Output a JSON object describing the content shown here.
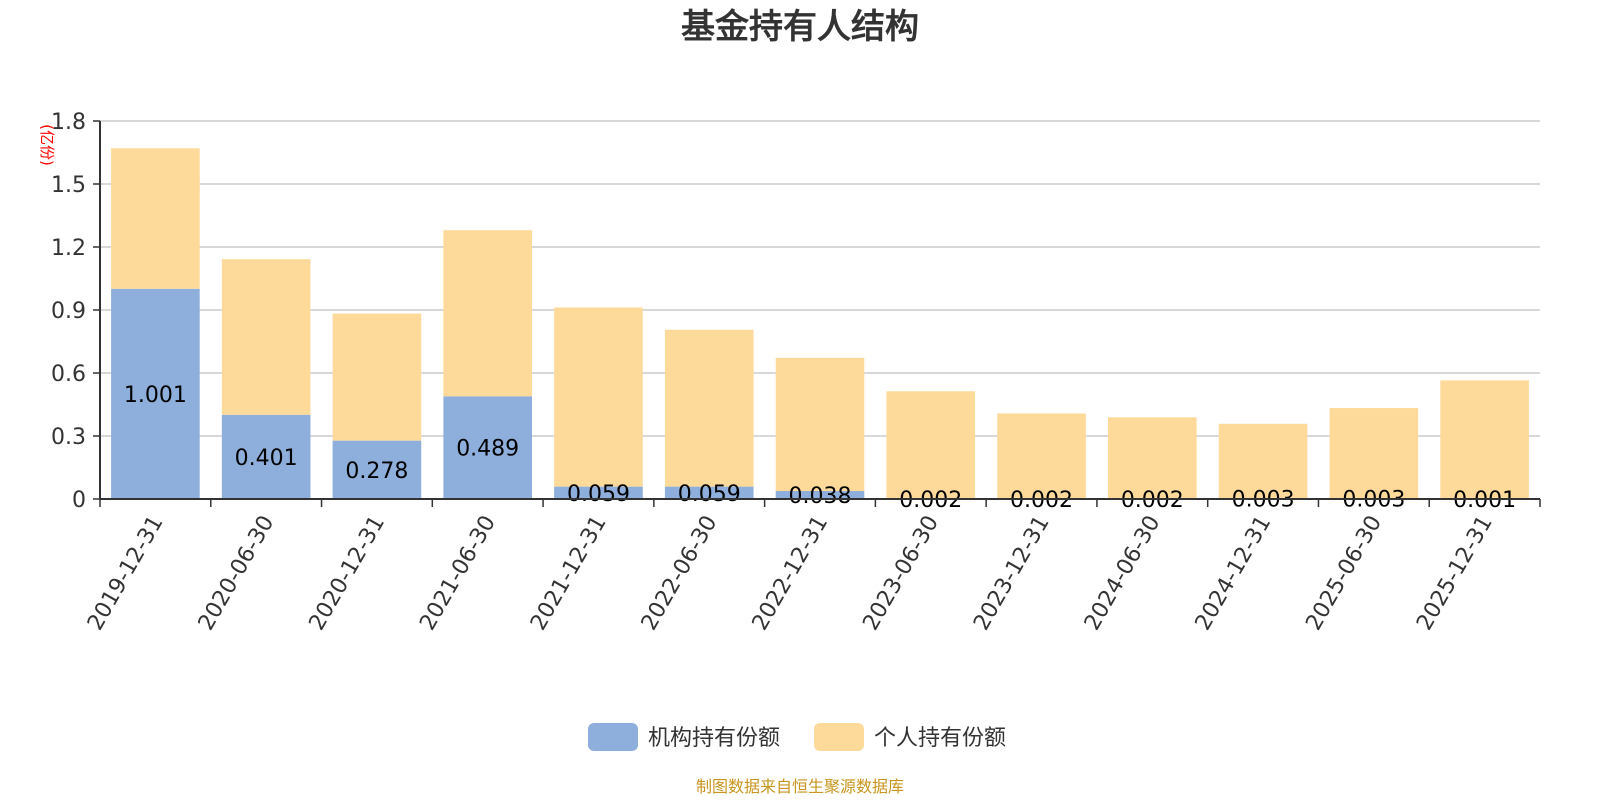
{
  "chart_data": {
    "type": "bar",
    "stacked": true,
    "title": "基金持有人结构",
    "unit": "(亿份)",
    "categories": [
      "2019-12-31",
      "2020-06-30",
      "2020-12-31",
      "2021-06-30",
      "2021-12-31",
      "2022-06-30",
      "2022-12-31",
      "2023-06-30",
      "2023-12-31",
      "2024-06-30",
      "2024-12-31",
      "2025-06-30",
      "2025-12-31"
    ],
    "series": [
      {
        "name": "机构持有份额",
        "color": "#8eaedb",
        "values": [
          1.001,
          0.401,
          0.278,
          0.489,
          0.059,
          0.059,
          0.038,
          0.002,
          0.002,
          0.002,
          0.003,
          0.003,
          0.001
        ],
        "labels": [
          "1.001",
          "0.401",
          "0.278",
          "0.489",
          "0.059",
          "0.059",
          "0.038",
          "0.002",
          "0.002",
          "0.002",
          "0.003",
          "0.003",
          "0.001"
        ]
      },
      {
        "name": "个人持有份额",
        "color": "#fdd99a",
        "values": [
          0.669,
          0.741,
          0.605,
          0.791,
          0.853,
          0.747,
          0.634,
          0.511,
          0.405,
          0.387,
          0.355,
          0.43,
          0.564
        ]
      }
    ],
    "yticks": [
      "0",
      "0.3",
      "0.6",
      "0.9",
      "1.2",
      "1.5",
      "1.8"
    ],
    "ylim": [
      0,
      1.8
    ],
    "grid": true,
    "legend_position": "bottom-center",
    "source": "制图数据来自恒生聚源数据库"
  }
}
